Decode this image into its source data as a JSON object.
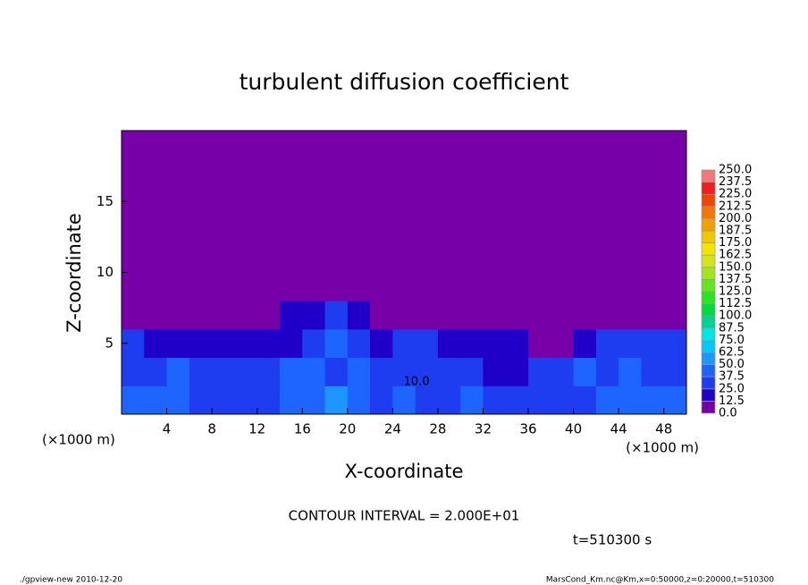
{
  "chart_data": {
    "type": "heatmap",
    "title": "turbulent diffusion coefficient",
    "xlabel": "X-coordinate",
    "ylabel": "Z-coordinate",
    "x_unit": "(×1000 m)",
    "y_unit": "(×1000 m)",
    "xlim": [
      0,
      50
    ],
    "ylim": [
      0,
      20
    ],
    "xticks": [
      4,
      8,
      12,
      16,
      20,
      24,
      28,
      32,
      36,
      40,
      44,
      48
    ],
    "yticks": [
      5,
      10,
      15
    ],
    "x": [
      1,
      3,
      5,
      7,
      9,
      11,
      13,
      15,
      17,
      19,
      21,
      23,
      25,
      27,
      29,
      31,
      33,
      35,
      37,
      39,
      41,
      43,
      45,
      47,
      49
    ],
    "y": [
      1,
      3,
      5,
      7,
      9,
      11,
      13,
      15,
      17,
      19
    ],
    "values": [
      [
        40,
        38,
        45,
        35,
        30,
        28,
        35,
        40,
        45,
        50,
        42,
        35,
        38,
        30,
        35,
        40,
        30,
        25,
        28,
        30,
        32,
        38,
        45,
        40,
        38
      ],
      [
        35,
        30,
        38,
        25,
        28,
        30,
        32,
        45,
        40,
        35,
        38,
        30,
        28,
        35,
        30,
        25,
        20,
        18,
        25,
        30,
        38,
        35,
        40,
        30,
        28
      ],
      [
        30,
        22,
        18,
        15,
        20,
        18,
        15,
        20,
        35,
        38,
        25,
        20,
        30,
        25,
        22,
        18,
        20,
        15,
        8,
        10,
        18,
        25,
        30,
        28,
        25
      ],
      [
        12,
        8,
        6,
        5,
        5,
        8,
        10,
        15,
        20,
        25,
        15,
        12,
        10,
        10,
        8,
        5,
        5,
        3,
        2,
        2,
        3,
        5,
        8,
        10,
        12
      ],
      [
        0,
        0,
        0,
        0,
        0,
        0,
        0,
        2,
        5,
        8,
        4,
        2,
        0,
        0,
        0,
        0,
        0,
        0,
        0,
        0,
        0,
        0,
        0,
        0,
        0
      ],
      [
        0,
        0,
        0,
        0,
        0,
        0,
        0,
        0,
        0,
        0,
        0,
        0,
        0,
        0,
        0,
        0,
        0,
        0,
        0,
        0,
        0,
        0,
        0,
        0,
        0
      ],
      [
        0,
        0,
        0,
        0,
        0,
        0,
        0,
        0,
        0,
        0,
        0,
        0,
        0,
        0,
        0,
        0,
        0,
        0,
        0,
        0,
        0,
        0,
        0,
        0,
        0
      ],
      [
        0,
        0,
        0,
        0,
        0,
        0,
        0,
        0,
        0,
        0,
        0,
        0,
        0,
        0,
        0,
        0,
        0,
        0,
        0,
        0,
        0,
        0,
        0,
        0,
        0
      ],
      [
        0,
        0,
        0,
        0,
        0,
        0,
        0,
        0,
        0,
        0,
        0,
        0,
        0,
        0,
        0,
        0,
        0,
        0,
        0,
        0,
        0,
        0,
        0,
        0,
        0
      ],
      [
        0,
        0,
        0,
        0,
        0,
        0,
        0,
        0,
        0,
        0,
        0,
        0,
        0,
        0,
        0,
        0,
        0,
        0,
        0,
        0,
        0,
        0,
        0,
        0,
        0
      ]
    ],
    "levels": [
      {
        "value": 0,
        "label": "0.0"
      },
      {
        "value": 12.5,
        "label": "12.5"
      },
      {
        "value": 25,
        "label": "25.0"
      },
      {
        "value": 37.5,
        "label": "37.5"
      },
      {
        "value": 50,
        "label": "50.0"
      },
      {
        "value": 62.5,
        "label": "62.5"
      },
      {
        "value": 75,
        "label": "75.0"
      },
      {
        "value": 87.5,
        "label": "87.5"
      },
      {
        "value": 100,
        "label": "100.0"
      },
      {
        "value": 112.5,
        "label": "112.5"
      },
      {
        "value": 125,
        "label": "125.0"
      },
      {
        "value": 137.5,
        "label": "137.5"
      },
      {
        "value": 150,
        "label": "150.0"
      },
      {
        "value": 162.5,
        "label": "162.5"
      },
      {
        "value": 175,
        "label": "175.0"
      },
      {
        "value": 187.5,
        "label": "187.5"
      },
      {
        "value": 200,
        "label": "200.0"
      },
      {
        "value": 212.5,
        "label": "212.5"
      },
      {
        "value": 225,
        "label": "225.0"
      },
      {
        "value": 237.5,
        "label": "237.5"
      },
      {
        "value": 250,
        "label": "250.0"
      }
    ],
    "colors": [
      "#7800a8",
      "#2000c8",
      "#1e3cf0",
      "#1e64ff",
      "#1e96ff",
      "#00c8ff",
      "#00e6e6",
      "#00d296",
      "#00dc3c",
      "#28e61e",
      "#64e61e",
      "#a0e61e",
      "#d2e61e",
      "#f0e600",
      "#f0c800",
      "#f0a000",
      "#f07800",
      "#f04600",
      "#f01e1e",
      "#f07878"
    ],
    "contour_label": "10.0",
    "contour_interval": "CONTOUR INTERVAL = 2.000E+01",
    "time_label": "t=510300 s",
    "footer_left": "./gpview-new  2010-12-20",
    "footer_right": "MarsCond_Km.nc@Km,x=0:50000,z=0:20000,t=510300"
  }
}
